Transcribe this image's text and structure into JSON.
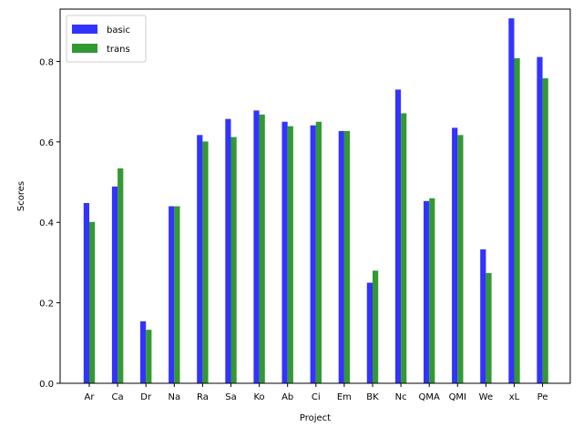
{
  "chart_data": {
    "type": "bar",
    "title": "",
    "xlabel": "Project",
    "ylabel": "Scores",
    "ylim": [
      0,
      0.93
    ],
    "yticks": [
      "0.0",
      "0.2",
      "0.4",
      "0.6",
      "0.8"
    ],
    "categories": [
      "Ar",
      "Ca",
      "Dr",
      "Na",
      "Ra",
      "Sa",
      "Ko",
      "Ab",
      "Ci",
      "Em",
      "BK",
      "Nc",
      "QMA",
      "QMI",
      "We",
      "xL",
      "Pe"
    ],
    "series": [
      {
        "name": "basic",
        "color": "#3333ff",
        "values": [
          0.448,
          0.489,
          0.154,
          0.44,
          0.617,
          0.657,
          0.678,
          0.65,
          0.641,
          0.627,
          0.25,
          0.73,
          0.453,
          0.635,
          0.333,
          0.907,
          0.811
        ]
      },
      {
        "name": "trans",
        "color": "#339933",
        "values": [
          0.401,
          0.534,
          0.133,
          0.44,
          0.601,
          0.612,
          0.668,
          0.639,
          0.65,
          0.627,
          0.28,
          0.671,
          0.46,
          0.617,
          0.274,
          0.808,
          0.758
        ]
      }
    ],
    "legend_position": "top-left",
    "grid": false
  }
}
